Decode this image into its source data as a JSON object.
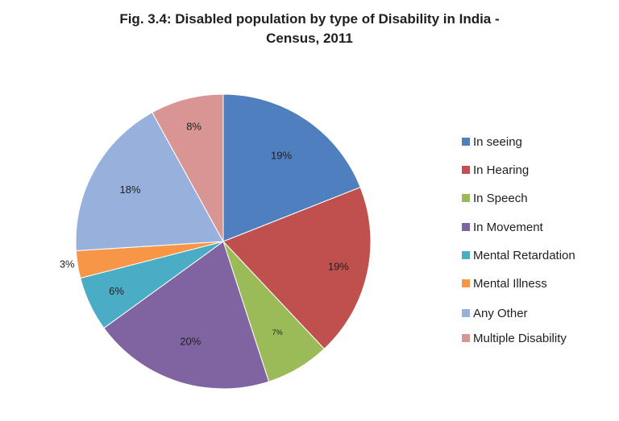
{
  "chart_data": {
    "type": "pie",
    "title_lines": [
      "Fig. 3.4: Disabled population by type of Disability in India -",
      "Census, 2011"
    ],
    "categories": [
      "In seeing",
      "In Hearing",
      "In Speech",
      "In Movement",
      "Mental Retardation",
      "Mental Illness",
      "Any Other",
      "Multiple Disability"
    ],
    "values": [
      19,
      19,
      7,
      20,
      6,
      3,
      18,
      8
    ],
    "value_labels": [
      "19%",
      "19%",
      "7%",
      "20%",
      "6%",
      "3%",
      "18%",
      "8%"
    ],
    "colors": [
      "#4f7fbe",
      "#c0504d",
      "#9bbb59",
      "#8064a2",
      "#4bacc6",
      "#f79646",
      "#98b0dc",
      "#d99594"
    ],
    "legend_position": "right"
  }
}
